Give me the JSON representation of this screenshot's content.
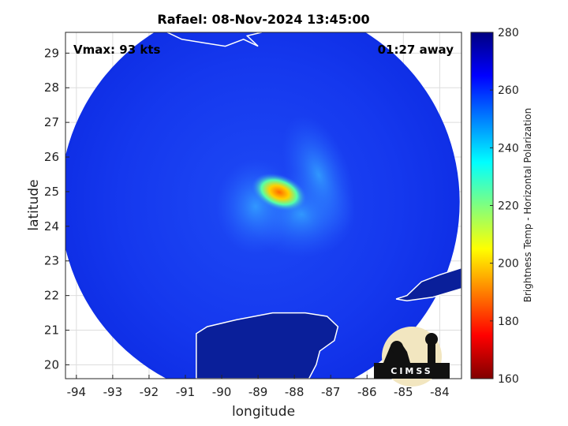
{
  "chart_data": {
    "type": "heatmap",
    "title": "Rafael: 08-Nov-2024 13:45:00",
    "xlabel": "longitude",
    "ylabel": "latitude",
    "xlim": [
      -94.3,
      -83.4
    ],
    "ylim": [
      19.6,
      29.6
    ],
    "x_ticks": [
      -94,
      -93,
      -92,
      -91,
      -90,
      -89,
      -88,
      -87,
      -86,
      -85,
      -84
    ],
    "y_ticks": [
      20,
      21,
      22,
      23,
      24,
      25,
      26,
      27,
      28,
      29
    ],
    "grid": true,
    "scan_region": {
      "center_lon": -88.95,
      "center_lat": 24.7,
      "radius_deg": 5.5
    },
    "storm_center": {
      "lon": -88.2,
      "lat": 24.8
    },
    "annotations": {
      "vmax": "Vmax: 93 kts",
      "time_away": "01:27 away"
    },
    "colorbar": {
      "label": "Brightness Temp - Horizontal Polarization",
      "min": 160,
      "max": 280,
      "ticks": [
        160,
        180,
        200,
        220,
        240,
        260,
        280
      ]
    },
    "logo_text": "CIMSS"
  }
}
